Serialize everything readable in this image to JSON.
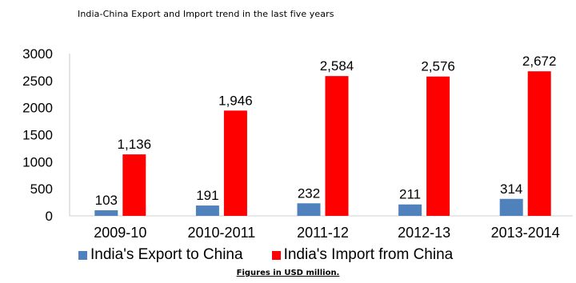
{
  "chart_data": {
    "type": "bar",
    "title": "India-China Export and Import trend in the last five years",
    "categories": [
      "2009-10",
      "2010-2011",
      "2011-12",
      "2012-13",
      "2013-2014"
    ],
    "series": [
      {
        "name": "India's Export to China",
        "values": [
          103,
          191,
          232,
          211,
          314
        ],
        "labels": [
          "103",
          "191",
          "232",
          "211",
          "314"
        ],
        "color": "#4f81bd"
      },
      {
        "name": "India's Import from China",
        "values": [
          1136,
          1946,
          2584,
          2576,
          2672
        ],
        "labels": [
          "1,136",
          "1,946",
          "2,584",
          "2,576",
          "2,672"
        ],
        "color": "#ff0000"
      }
    ],
    "ylim": [
      0,
      3000
    ],
    "yticks": [
      "0",
      "500",
      "1000",
      "1500",
      "2000",
      "2500",
      "3000"
    ],
    "grid": false,
    "legend_position": "bottom",
    "footnote": "Figures in USD million."
  }
}
